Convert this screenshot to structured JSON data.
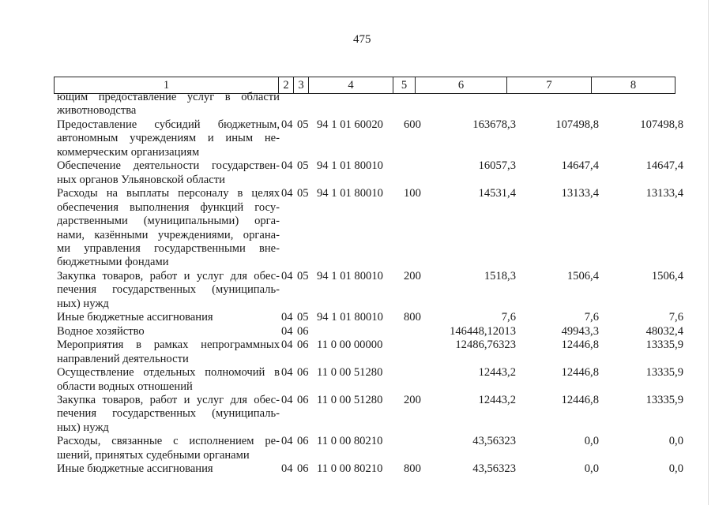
{
  "page_number": "475",
  "header": [
    "1",
    "2",
    "3",
    "4",
    "5",
    "6",
    "7",
    "8"
  ],
  "rows": [
    {
      "lines": [
        "ющим предоставление услуг в области",
        "животноводства"
      ],
      "c2": "",
      "c3": "",
      "c4": "",
      "c5": "",
      "c6": "",
      "c7": "",
      "c8": ""
    },
    {
      "lines": [
        "Предоставление субсидий бюджетным,",
        "автономным учреждениям и иным не-",
        "коммерческим организациям"
      ],
      "c2": "04",
      "c3": "05",
      "c4": "94 1 01 60020",
      "c5": "600",
      "c6": "163678,3",
      "c7": "107498,8",
      "c8": "107498,8"
    },
    {
      "lines": [
        "Обеспечение деятельности государствен-",
        "ных органов Ульяновской области"
      ],
      "c2": "04",
      "c3": "05",
      "c4": "94 1 01 80010",
      "c5": "",
      "c6": "16057,3",
      "c7": "14647,4",
      "c8": "14647,4"
    },
    {
      "lines": [
        "Расходы на выплаты персоналу в целях",
        "обеспечения выполнения функций госу-",
        "дарственными (муниципальными) орга-",
        "нами, казёнными учреждениями, органа-",
        "ми управления государственными вне-",
        "бюджетными фондами"
      ],
      "c2": "04",
      "c3": "05",
      "c4": "94 1 01 80010",
      "c5": "100",
      "c6": "14531,4",
      "c7": "13133,4",
      "c8": "13133,4"
    },
    {
      "lines": [
        "Закупка товаров, работ и услуг для обес-",
        "печения государственных (муниципаль-",
        "ных) нужд"
      ],
      "c2": "04",
      "c3": "05",
      "c4": "94 1 01 80010",
      "c5": "200",
      "c6": "1518,3",
      "c7": "1506,4",
      "c8": "1506,4"
    },
    {
      "lines": [
        "Иные бюджетные ассигнования"
      ],
      "c2": "04",
      "c3": "05",
      "c4": "94 1 01 80010",
      "c5": "800",
      "c6": "7,6",
      "c7": "7,6",
      "c8": "7,6"
    },
    {
      "lines": [
        "Водное хозяйство"
      ],
      "c2": "04",
      "c3": "06",
      "c4": "",
      "c5": "",
      "c6": "146448,12013",
      "c7": "49943,3",
      "c8": "48032,4"
    },
    {
      "lines": [
        "Мероприятия в рамках непрограммных",
        "направлений деятельности"
      ],
      "c2": "04",
      "c3": "06",
      "c4": "11 0 00 00000",
      "c5": "",
      "c6": "12486,76323",
      "c7": "12446,8",
      "c8": "13335,9"
    },
    {
      "lines": [
        "Осуществление отдельных полномочий в",
        "области водных отношений"
      ],
      "c2": "04",
      "c3": "06",
      "c4": "11 0 00 51280",
      "c5": "",
      "c6": "12443,2",
      "c7": "12446,8",
      "c8": "13335,9"
    },
    {
      "lines": [
        "Закупка товаров, работ и услуг для обес-",
        "печения государственных (муниципаль-",
        "ных) нужд"
      ],
      "c2": "04",
      "c3": "06",
      "c4": "11 0 00 51280",
      "c5": "200",
      "c6": "12443,2",
      "c7": "12446,8",
      "c8": "13335,9"
    },
    {
      "lines": [
        "Расходы, связанные с исполнением ре-",
        "шений, принятых судебными органами"
      ],
      "c2": "04",
      "c3": "06",
      "c4": "11 0 00 80210",
      "c5": "",
      "c6": "43,56323",
      "c7": "0,0",
      "c8": "0,0"
    },
    {
      "lines": [
        "Иные бюджетные ассигнования"
      ],
      "c2": "04",
      "c3": "06",
      "c4": "11 0 00 80210",
      "c5": "800",
      "c6": "43,56323",
      "c7": "0,0",
      "c8": "0,0"
    }
  ]
}
